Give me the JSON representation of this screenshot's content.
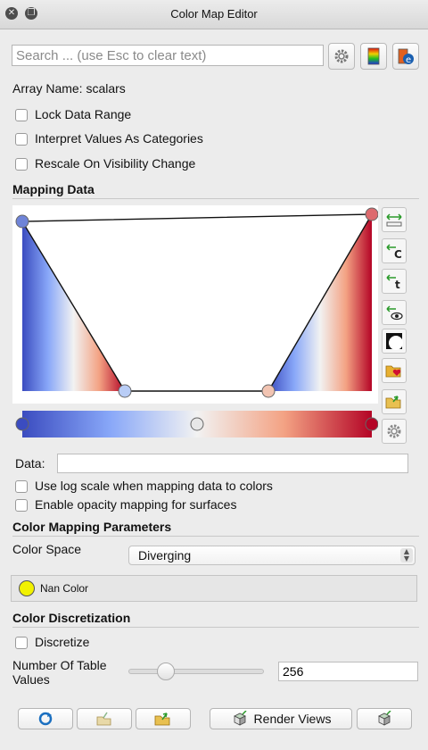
{
  "window": {
    "title": "Color Map Editor"
  },
  "search": {
    "placeholder": "Search ... (use Esc to clear text)"
  },
  "array_name": "Array Name: scalars",
  "options": {
    "lock_data_range": "Lock Data Range",
    "interpret_categories": "Interpret Values As Categories",
    "rescale_visibility": "Rescale On Visibility Change"
  },
  "mapping_data": {
    "title": "Mapping Data",
    "data_label": "Data:",
    "data_value": "",
    "log_scale": "Use log scale when mapping data to colors",
    "opacity_mapping": "Enable opacity mapping for surfaces"
  },
  "color_mapping": {
    "title": "Color Mapping Parameters",
    "color_space_label": "Color Space",
    "color_space_value": "Diverging",
    "nan_color_label": "Nan Color",
    "nan_color": "#f2f200"
  },
  "discretization": {
    "title": "Color Discretization",
    "discretize_label": "Discretize",
    "table_values_label_line1": "Number Of Table",
    "table_values_label_line2": "Values",
    "table_values": "256",
    "slider_fraction": 0.27
  },
  "buttons": {
    "render_views": "Render Views"
  },
  "colors": {
    "cold": "#3b4cc0",
    "warm": "#b40426",
    "mid": "#f2f2f2"
  }
}
